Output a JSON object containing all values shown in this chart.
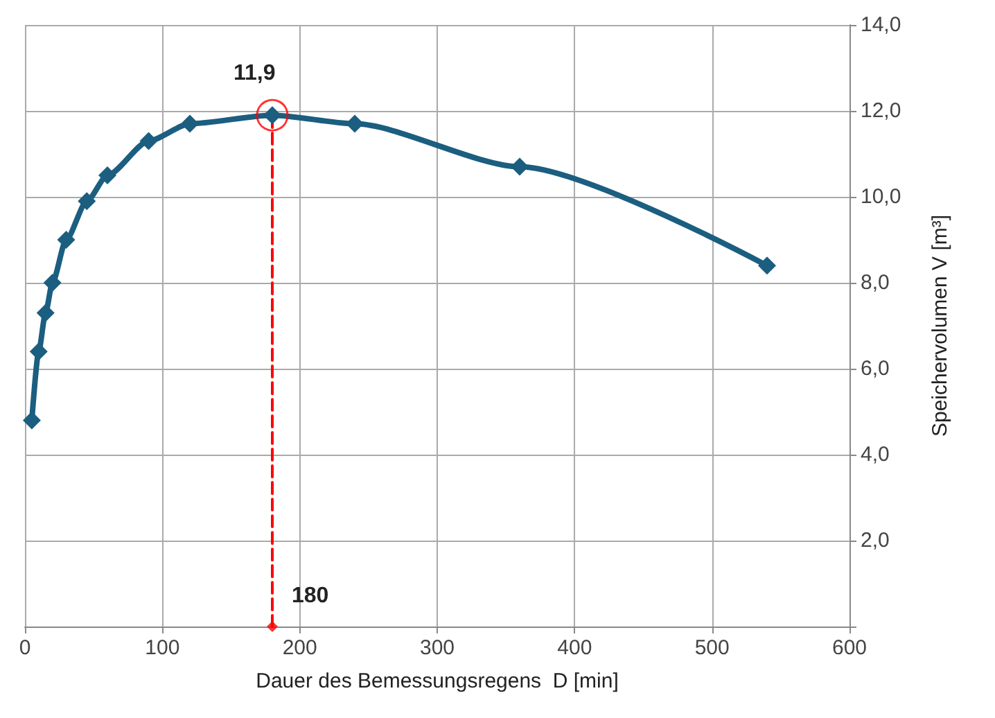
{
  "chart_data": {
    "type": "line",
    "xlabel": "Dauer des Bemessungsregens  D [min]",
    "ylabel": "Speichervolumen V [m³]",
    "xlim": [
      0,
      600
    ],
    "xticks": [
      0,
      100,
      200,
      300,
      400,
      500,
      600
    ],
    "ylim": [
      0,
      14
    ],
    "yticks": [
      {
        "value": 0,
        "label": null
      },
      {
        "value": 2,
        "label": "2,0"
      },
      {
        "value": 4,
        "label": "4,0"
      },
      {
        "value": 6,
        "label": "6,0"
      },
      {
        "value": 8,
        "label": "8,0"
      },
      {
        "value": 10,
        "label": "10,0"
      },
      {
        "value": 12,
        "label": "12,0"
      },
      {
        "value": 14,
        "label": "14,0"
      }
    ],
    "grid": true,
    "series": [
      {
        "type": "line",
        "color": "#1b5e80",
        "marker": "diamond",
        "line_style": "solid",
        "x": [
          5,
          10,
          15,
          20,
          30,
          45,
          60,
          90,
          120,
          180,
          240,
          360,
          540
        ],
        "values": [
          4.8,
          6.4,
          7.3,
          8.0,
          9.0,
          9.9,
          10.5,
          11.3,
          11.7,
          11.9,
          11.7,
          10.7,
          8.4
        ]
      },
      {
        "type": "line",
        "color": "#ff0000",
        "marker": "none",
        "line_style": "dashed",
        "x": [
          180,
          180
        ],
        "values": [
          0,
          11.9
        ]
      },
      {
        "type": "scatter",
        "color": "#ff0000",
        "marker": "diamond",
        "x": [
          180
        ],
        "values": [
          0
        ]
      },
      {
        "type": "scatter",
        "color": "#ff0000",
        "marker": "circle",
        "x": [
          180
        ],
        "values": [
          11.9
        ]
      }
    ],
    "annotations": [
      {
        "text": "11,9",
        "x": 180,
        "y": 11.9
      },
      {
        "text": "180",
        "x": 180,
        "y": 0
      }
    ]
  }
}
